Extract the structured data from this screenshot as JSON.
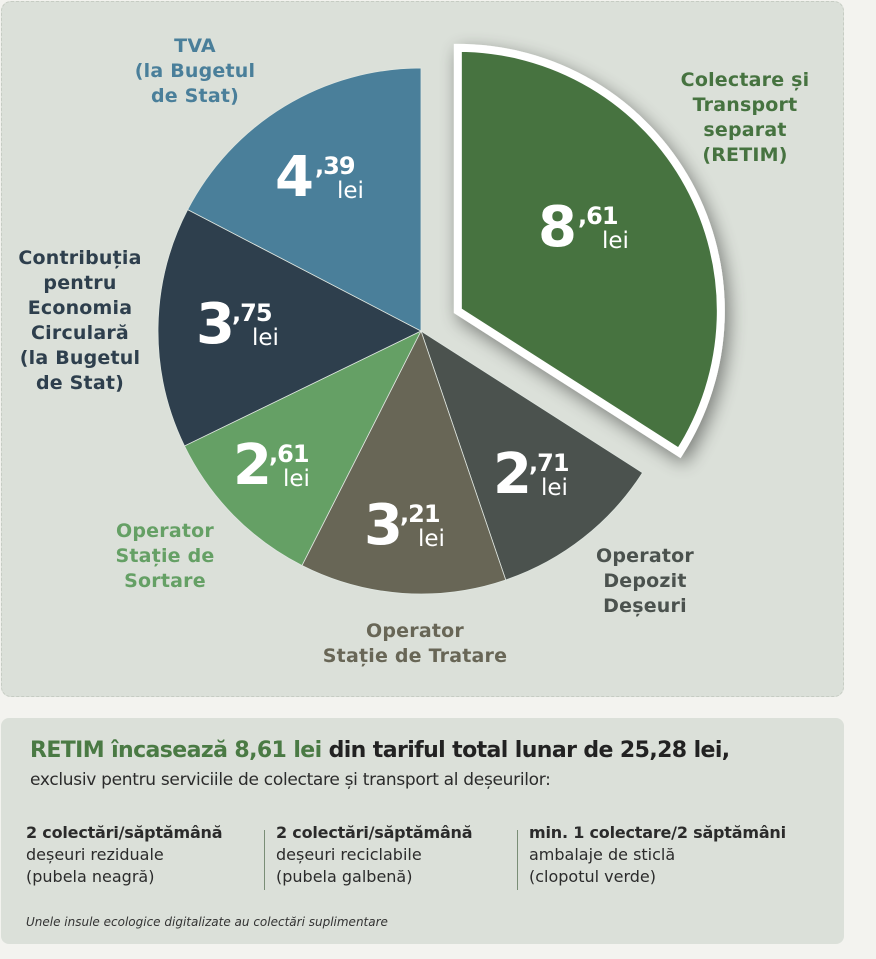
{
  "chart_data": {
    "type": "pie",
    "title": "",
    "unit": "lei",
    "total": 25.28,
    "start_angle": "12 o'clock",
    "direction": "clockwise",
    "slices": [
      {
        "label": "Colectare și Transport separat (RETIM)",
        "value": 8.61,
        "int": "8",
        "dec": ",61",
        "color": "#467340",
        "label_color": "#467340",
        "exploded": true
      },
      {
        "label": "Operator Depozit Deșeuri",
        "value": 2.71,
        "int": "2",
        "dec": ",71",
        "color": "#4b524e",
        "label_color": "#4b524e",
        "exploded": false
      },
      {
        "label": "Operator Stație de Tratare",
        "value": 3.21,
        "int": "3",
        "dec": ",21",
        "color": "#686656",
        "label_color": "#686656",
        "exploded": false
      },
      {
        "label": "Operator Stație de Sortare",
        "value": 2.61,
        "int": "2",
        "dec": ",61",
        "color": "#65a065",
        "label_color": "#65a065",
        "exploded": false
      },
      {
        "label": "Contribuția pentru Economia Circulară (la Bugetul de Stat)",
        "value": 3.75,
        "int": "3",
        "dec": ",75",
        "color": "#2e3f4d",
        "label_color": "#2e3f4d",
        "exploded": false
      },
      {
        "label": "TVA (la Bugetul de Stat)",
        "value": 4.39,
        "int": "4",
        "dec": ",39",
        "color": "#4a7f9a",
        "label_color": "#4a7f9a",
        "exploded": false
      }
    ]
  },
  "labels": {
    "retim": [
      "Colectare și",
      "Transport",
      "separat",
      "(RETIM)"
    ],
    "depozit": [
      "Operator",
      "Depozit",
      "Deșeuri"
    ],
    "tratare": [
      "Operator",
      "Stație de Tratare"
    ],
    "sortare": [
      "Operator",
      "Stație de",
      "Sortare"
    ],
    "contributie": [
      "Contribuția",
      "pentru",
      "Economia",
      "Circulară",
      "(la Bugetul",
      "de Stat)"
    ],
    "tva": [
      "TVA",
      "(la Bugetul",
      "de Stat)"
    ]
  },
  "value_unit": "lei",
  "summary": {
    "headline_green": "RETIM încasează 8,61 lei",
    "headline_rest": " din tariful total lunar de 25,28 lei,",
    "subline": "exclusiv pentru serviciile de colectare și transport al deșeurilor:",
    "columns": [
      {
        "title": "2 colectări/săptămână",
        "line1": "deșeuri reziduale",
        "line2": "(pubela neagră)"
      },
      {
        "title": "2 colectări/săptămână",
        "line1": "deșeuri reciclabile",
        "line2": "(pubela galbenă)"
      },
      {
        "title": "min. 1 colectare/2 săptămâni",
        "line1": "ambalaje de sticlă",
        "line2": "(clopotul verde)"
      }
    ],
    "note": "Unele insule ecologice digitalizate au colectări suplimentare"
  }
}
